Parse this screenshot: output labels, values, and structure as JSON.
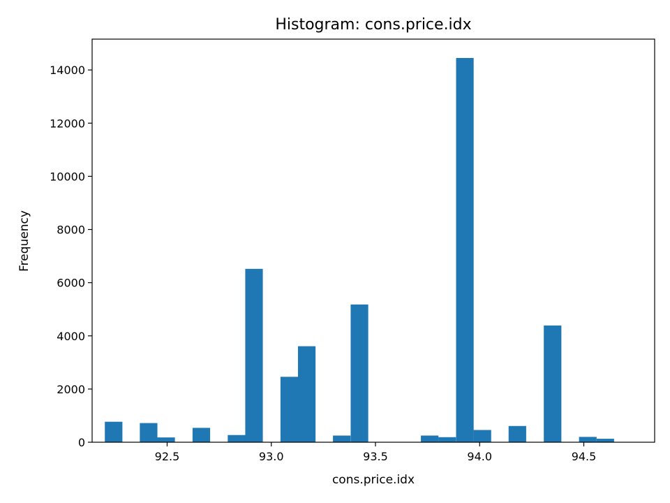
{
  "chart_data": {
    "type": "bar",
    "title": "Histogram: cons.price.idx",
    "xlabel": "cons.price.idx",
    "ylabel": "Frequency",
    "xlim": [
      92.14,
      94.84
    ],
    "ylim": [
      0,
      15160
    ],
    "xticks": [
      92.5,
      93.0,
      93.5,
      94.0,
      94.5
    ],
    "xtick_labels": [
      "92.5",
      "93.0",
      "93.5",
      "94.0",
      "94.5"
    ],
    "yticks": [
      0,
      2000,
      4000,
      6000,
      8000,
      10000,
      12000,
      14000
    ],
    "ytick_labels": [
      "0",
      "2000",
      "4000",
      "6000",
      "8000",
      "10000",
      "12000",
      "14000"
    ],
    "bar_color": "#1f77b4",
    "bin_width": 0.0843,
    "bins": [
      {
        "x0": 92.201,
        "value": 770
      },
      {
        "x0": 92.285,
        "value": 0
      },
      {
        "x0": 92.369,
        "value": 720
      },
      {
        "x0": 92.453,
        "value": 180
      },
      {
        "x0": 92.538,
        "value": 0
      },
      {
        "x0": 92.622,
        "value": 540
      },
      {
        "x0": 92.706,
        "value": 0
      },
      {
        "x0": 92.791,
        "value": 270
      },
      {
        "x0": 92.875,
        "value": 6520
      },
      {
        "x0": 92.959,
        "value": 0
      },
      {
        "x0": 93.044,
        "value": 2460
      },
      {
        "x0": 93.128,
        "value": 3610
      },
      {
        "x0": 93.212,
        "value": 0
      },
      {
        "x0": 93.296,
        "value": 250
      },
      {
        "x0": 93.381,
        "value": 5180
      },
      {
        "x0": 93.465,
        "value": 0
      },
      {
        "x0": 93.549,
        "value": 0
      },
      {
        "x0": 93.634,
        "value": 0
      },
      {
        "x0": 93.718,
        "value": 250
      },
      {
        "x0": 93.802,
        "value": 190
      },
      {
        "x0": 93.887,
        "value": 14450
      },
      {
        "x0": 93.971,
        "value": 460
      },
      {
        "x0": 94.055,
        "value": 0
      },
      {
        "x0": 94.139,
        "value": 610
      },
      {
        "x0": 94.224,
        "value": 0
      },
      {
        "x0": 94.308,
        "value": 4390
      },
      {
        "x0": 94.392,
        "value": 0
      },
      {
        "x0": 94.477,
        "value": 200
      },
      {
        "x0": 94.561,
        "value": 130
      }
    ]
  }
}
